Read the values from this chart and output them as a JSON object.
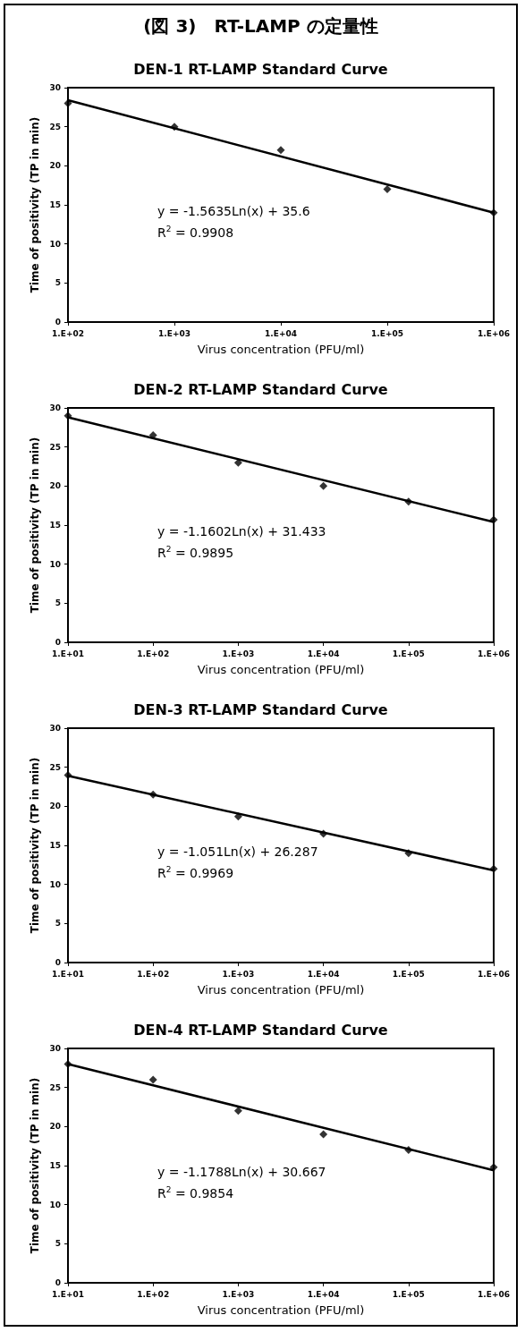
{
  "chart_data": [
    {
      "type": "scatter",
      "title": "(図 3)　RT-LAMP の定量性",
      "subtitle": "DEN-1 RT-LAMP Standard Curve",
      "xlabel": "Virus concentration (PFU/ml)",
      "ylabel": "Time of positivity (TP in min)",
      "marker": "diamond",
      "categories": [
        "1.E+02",
        "1.E+03",
        "1.E+04",
        "1.E+05",
        "1.E+06"
      ],
      "ylim": [
        0,
        30
      ],
      "yticks": [
        0,
        5,
        10,
        15,
        20,
        25,
        30
      ],
      "series": [
        {
          "type": "scatter",
          "color": "#000000",
          "values": [
            28,
            25,
            22,
            17,
            14
          ]
        },
        {
          "type": "line",
          "color": "#000000",
          "marker": "none",
          "x": [
            "1.E+02",
            "1.E+06"
          ],
          "values": [
            28.4,
            14.0
          ]
        }
      ],
      "annotations": [
        "y = -1.5635Ln(x) + 35.6",
        "R$^{2}$ = 0.9908"
      ]
    },
    {
      "type": "scatter",
      "title": "DEN-2 RT-LAMP Standard Curve",
      "xlabel": "Virus concentration (PFU/ml)",
      "ylabel": "Time of positivity (TP in min)",
      "marker": "diamond",
      "categories": [
        "1.E+01",
        "1.E+02",
        "1.E+03",
        "1.E+04",
        "1.E+05",
        "1.E+06"
      ],
      "ylim": [
        0,
        30
      ],
      "yticks": [
        0,
        5,
        10,
        15,
        20,
        25,
        30
      ],
      "series": [
        {
          "type": "scatter",
          "color": "#000000",
          "values": [
            29,
            26.5,
            23,
            20,
            18,
            15.7
          ]
        },
        {
          "type": "line",
          "color": "#000000",
          "marker": "none",
          "x": [
            "1.E+01",
            "1.E+06"
          ],
          "values": [
            28.8,
            15.4
          ]
        }
      ],
      "annotations": [
        "y = -1.1602Ln(x) + 31.433",
        "R$^{2}$ = 0.9895"
      ]
    },
    {
      "type": "scatter",
      "title": "DEN-3 RT-LAMP Standard Curve",
      "xlabel": "Virus concentration (PFU/ml)",
      "ylabel": "Time of positivity (TP in min)",
      "marker": "diamond",
      "categories": [
        "1.E+01",
        "1.E+02",
        "1.E+03",
        "1.E+04",
        "1.E+05",
        "1.E+06"
      ],
      "ylim": [
        0,
        30
      ],
      "yticks": [
        0,
        5,
        10,
        15,
        20,
        25,
        30
      ],
      "series": [
        {
          "type": "scatter",
          "color": "#000000",
          "values": [
            24,
            21.5,
            18.7,
            16.5,
            14,
            12
          ]
        },
        {
          "type": "line",
          "color": "#000000",
          "marker": "none",
          "x": [
            "1.E+01",
            "1.E+06"
          ],
          "values": [
            23.9,
            11.8
          ]
        }
      ],
      "annotations": [
        "y = -1.051Ln(x) + 26.287",
        "R$^{2}$ = 0.9969"
      ]
    },
    {
      "type": "scatter",
      "title": "DEN-4 RT-LAMP Standard Curve",
      "xlabel": "Virus concentration (PFU/ml)",
      "ylabel": "Time of positivity (TP in min)",
      "marker": "diamond",
      "categories": [
        "1.E+01",
        "1.E+02",
        "1.E+03",
        "1.E+04",
        "1.E+05",
        "1.E+06"
      ],
      "ylim": [
        0,
        30
      ],
      "yticks": [
        0,
        5,
        10,
        15,
        20,
        25,
        30
      ],
      "series": [
        {
          "type": "scatter",
          "color": "#000000",
          "values": [
            28,
            26,
            22,
            19,
            17,
            14.8
          ]
        },
        {
          "type": "line",
          "color": "#000000",
          "marker": "none",
          "x": [
            "1.E+01",
            "1.E+06"
          ],
          "values": [
            28.0,
            14.4
          ]
        }
      ],
      "annotations": [
        "y = -1.1788Ln(x) + 30.667",
        "R$^{2}$ = 0.9854"
      ]
    }
  ]
}
